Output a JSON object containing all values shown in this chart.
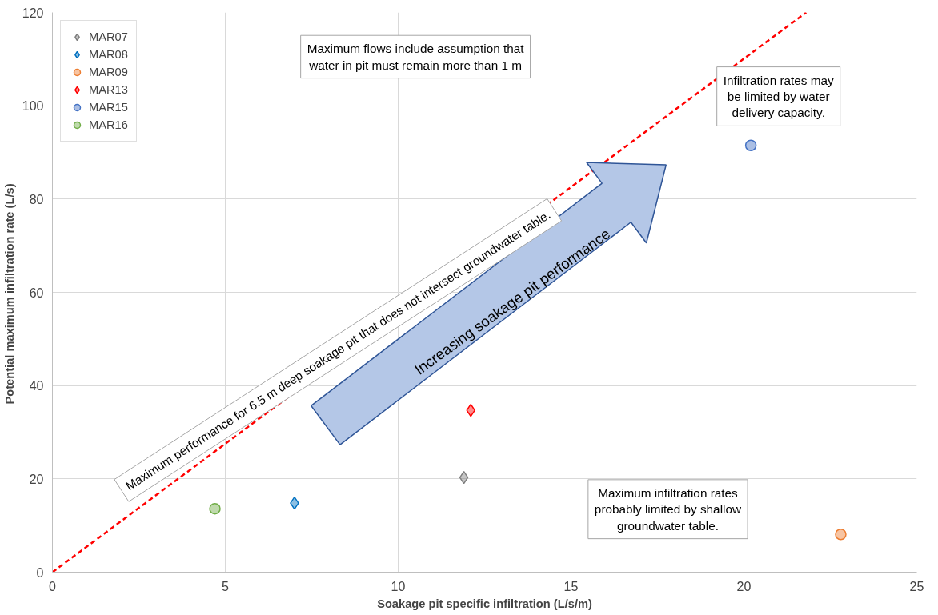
{
  "chart_data": {
    "type": "scatter",
    "xlabel": "Soakage pit specific infiltration (L/s/m)",
    "ylabel": "Potential maximum  infiltration rate (L/s)",
    "xlim": [
      0,
      25
    ],
    "ylim": [
      0,
      120
    ],
    "xticks": [
      0,
      5,
      10,
      15,
      20,
      25
    ],
    "yticks": [
      0,
      20,
      40,
      60,
      80,
      100,
      120
    ],
    "grid": true,
    "legend": "top left",
    "series": [
      {
        "name": "MAR07",
        "color": "#7f7f7f",
        "marker": "diamond",
        "x": [
          11.9
        ],
        "values": [
          20.3
        ]
      },
      {
        "name": "MAR08",
        "color": "#0070c0",
        "marker": "diamond",
        "x": [
          7.0
        ],
        "values": [
          14.8
        ]
      },
      {
        "name": "MAR09",
        "color": "#ed7d31",
        "marker": "circle",
        "x": [
          22.8
        ],
        "values": [
          8.1
        ]
      },
      {
        "name": "MAR13",
        "color": "#ff0000",
        "marker": "diamond",
        "x": [
          12.1
        ],
        "values": [
          34.7
        ]
      },
      {
        "name": "MAR15",
        "color": "#4472c4",
        "marker": "circle",
        "x": [
          20.2
        ],
        "values": [
          91.5
        ]
      },
      {
        "name": "MAR16",
        "color": "#70ad47",
        "marker": "circle",
        "x": [
          4.7
        ],
        "values": [
          13.6
        ]
      },
      {
        "type": "line",
        "color": "#ff0000",
        "line_style": "dashed",
        "x": [
          0,
          21.8
        ],
        "values": [
          0,
          120
        ]
      }
    ],
    "annotations": [
      "Maximum flows include assumption that water in pit must remain more than 1 m",
      "Infiltration rates may be limited by water delivery capacity.",
      "Maximum infiltration rates probably limited by shallow groundwater table.",
      "Maximum performance for 6.5 m deep soakage pit that does not intersect groundwater table.",
      "Increasing soakage pit performance"
    ]
  }
}
